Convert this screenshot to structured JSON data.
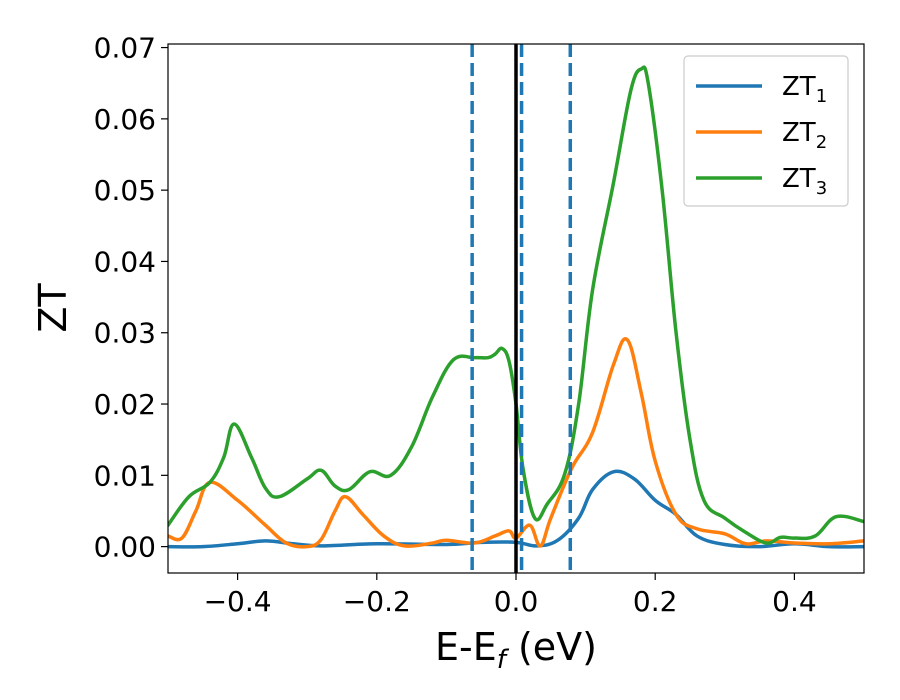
{
  "chart_data": {
    "type": "line",
    "xlabel": "E-E",
    "xlabel_sub": "f",
    "xlabel_unit": " (eV)",
    "ylabel": "ZT",
    "xlim": [
      -0.5,
      0.5
    ],
    "ylim": [
      -0.0037,
      0.0705
    ],
    "xticks": [
      -0.4,
      -0.2,
      0.0,
      0.2,
      0.4
    ],
    "xtick_labels": [
      "−0.4",
      "−0.2",
      "0.0",
      "0.2",
      "0.4"
    ],
    "yticks": [
      0.0,
      0.01,
      0.02,
      0.03,
      0.04,
      0.05,
      0.06,
      0.07
    ],
    "ytick_labels": [
      "0.00",
      "0.01",
      "0.02",
      "0.03",
      "0.04",
      "0.05",
      "0.06",
      "0.07"
    ],
    "legend_position": "upper right",
    "vlines": [
      {
        "x": 0.0,
        "style": "solid",
        "color": "#000000"
      },
      {
        "x": -0.063,
        "style": "dashed",
        "color": "#1f77b4"
      },
      {
        "x": 0.008,
        "style": "dashed",
        "color": "#1f77b4"
      },
      {
        "x": 0.078,
        "style": "dashed",
        "color": "#1f77b4"
      }
    ],
    "series": [
      {
        "name": "ZT",
        "subscript": "1",
        "color": "#1f77b4",
        "x": [
          -0.5,
          -0.45,
          -0.4,
          -0.36,
          -0.32,
          -0.28,
          -0.2,
          -0.1,
          -0.05,
          0.0,
          0.03,
          0.06,
          0.09,
          0.11,
          0.14,
          0.17,
          0.2,
          0.23,
          0.26,
          0.3,
          0.35,
          0.4,
          0.45,
          0.5
        ],
        "y": [
          0.0,
          0.0,
          0.0004,
          0.0008,
          0.0004,
          0.0001,
          0.0004,
          0.0003,
          0.0006,
          0.0006,
          0.0001,
          0.0009,
          0.004,
          0.008,
          0.0105,
          0.0095,
          0.0065,
          0.0045,
          0.0015,
          0.0003,
          0.0,
          0.0004,
          0.0,
          0.0
        ]
      },
      {
        "name": "ZT",
        "subscript": "2",
        "color": "#ff7f0e",
        "x": [
          -0.5,
          -0.48,
          -0.46,
          -0.44,
          -0.4,
          -0.36,
          -0.33,
          -0.3,
          -0.28,
          -0.26,
          -0.245,
          -0.22,
          -0.19,
          -0.16,
          -0.12,
          -0.1,
          -0.06,
          -0.03,
          -0.01,
          0.0,
          0.02,
          0.035,
          0.05,
          0.08,
          0.11,
          0.14,
          0.16,
          0.18,
          0.2,
          0.23,
          0.26,
          0.3,
          0.33,
          0.36,
          0.4,
          0.45,
          0.5
        ],
        "y": [
          0.0015,
          0.0012,
          0.005,
          0.009,
          0.0065,
          0.003,
          0.0005,
          0.0,
          0.001,
          0.005,
          0.007,
          0.0045,
          0.0015,
          0.0001,
          0.0005,
          0.0009,
          0.0005,
          0.0015,
          0.0022,
          0.0012,
          0.003,
          0.0001,
          0.004,
          0.011,
          0.016,
          0.0255,
          0.029,
          0.0215,
          0.012,
          0.0045,
          0.0025,
          0.0018,
          0.0004,
          0.0008,
          0.0005,
          0.0004,
          0.0008
        ]
      },
      {
        "name": "ZT",
        "subscript": "3",
        "color": "#2ca02c",
        "x": [
          -0.5,
          -0.47,
          -0.44,
          -0.42,
          -0.405,
          -0.38,
          -0.36,
          -0.34,
          -0.3,
          -0.28,
          -0.26,
          -0.24,
          -0.21,
          -0.18,
          -0.15,
          -0.12,
          -0.09,
          -0.06,
          -0.04,
          -0.03,
          -0.02,
          -0.01,
          0.0,
          0.01,
          0.027,
          0.045,
          0.07,
          0.09,
          0.11,
          0.14,
          0.165,
          0.18,
          0.19,
          0.21,
          0.23,
          0.25,
          0.27,
          0.3,
          0.33,
          0.36,
          0.38,
          0.4,
          0.43,
          0.46,
          0.5
        ],
        "y": [
          0.003,
          0.007,
          0.009,
          0.0125,
          0.0172,
          0.0125,
          0.0082,
          0.007,
          0.0095,
          0.0107,
          0.0085,
          0.008,
          0.0105,
          0.01,
          0.014,
          0.021,
          0.0262,
          0.0265,
          0.0265,
          0.027,
          0.0278,
          0.026,
          0.02,
          0.011,
          0.004,
          0.006,
          0.0102,
          0.02,
          0.036,
          0.051,
          0.064,
          0.067,
          0.065,
          0.05,
          0.03,
          0.015,
          0.0065,
          0.004,
          0.002,
          0.0005,
          0.0013,
          0.0012,
          0.0015,
          0.0042,
          0.0035
        ]
      }
    ]
  }
}
